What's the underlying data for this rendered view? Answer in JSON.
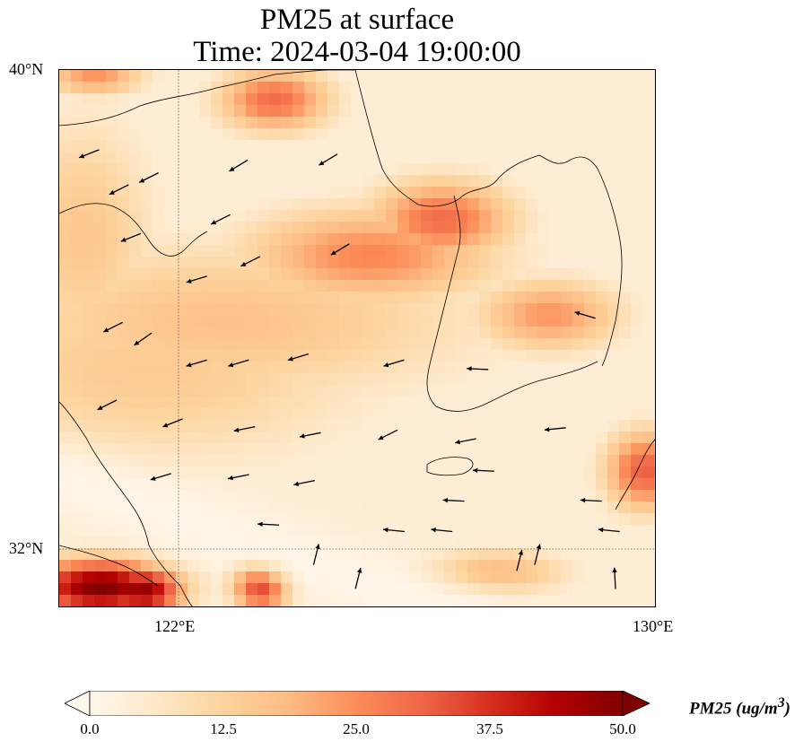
{
  "title": {
    "line1": "PM25 at surface",
    "line2": "Time: 2024-03-04 19:00:00"
  },
  "axes": {
    "lat_ticks": [
      "40°N",
      "32°N"
    ],
    "lon_ticks": [
      "122°E",
      "130°E"
    ],
    "lon_range": [
      120,
      130
    ],
    "lat_range": [
      31,
      40
    ],
    "gridlines": {
      "lon": 122,
      "lat": 32,
      "style": "dotted"
    }
  },
  "colorbar": {
    "label": "PM25",
    "units": "(ug/m",
    "units_exp": "3",
    "units_close": ")",
    "ticks": [
      "0.0",
      "12.5",
      "25.0",
      "37.5",
      "50.0"
    ],
    "range": [
      0,
      50
    ],
    "colormap": "OrRd",
    "extend": "both",
    "colors": [
      "#fff7ec",
      "#fee8c8",
      "#fdd49e",
      "#fdbb84",
      "#fc8d59",
      "#ef6548",
      "#d7301f",
      "#b30000",
      "#7f0000"
    ]
  },
  "chart_data": {
    "type": "heatmap",
    "variable": "PM25",
    "units": "ug/m3",
    "vmin": 0,
    "vmax": 50,
    "blobs": [
      {
        "lon": 120.7,
        "lat": 31.35,
        "value": 50,
        "spread_lon": 0.9,
        "spread_lat": 0.35
      },
      {
        "lon": 121.4,
        "lat": 31.3,
        "value": 48,
        "spread_lon": 0.5,
        "spread_lat": 0.3
      },
      {
        "lon": 123.4,
        "lat": 31.4,
        "value": 45,
        "spread_lon": 0.35,
        "spread_lat": 0.3
      },
      {
        "lon": 123.6,
        "lat": 39.5,
        "value": 30,
        "spread_lon": 0.7,
        "spread_lat": 0.4
      },
      {
        "lon": 120.6,
        "lat": 39.9,
        "value": 24,
        "spread_lon": 0.6,
        "spread_lat": 0.25
      },
      {
        "lon": 126.4,
        "lat": 37.5,
        "value": 30,
        "spread_lon": 0.9,
        "spread_lat": 0.5
      },
      {
        "lon": 125.2,
        "lat": 36.9,
        "value": 26,
        "spread_lon": 1.6,
        "spread_lat": 0.6
      },
      {
        "lon": 128.2,
        "lat": 35.9,
        "value": 24,
        "spread_lon": 0.9,
        "spread_lat": 0.45
      },
      {
        "lon": 129.8,
        "lat": 33.3,
        "value": 32,
        "spread_lon": 0.5,
        "spread_lat": 0.5
      },
      {
        "lon": 127.3,
        "lat": 31.6,
        "value": 19,
        "spread_lon": 0.9,
        "spread_lat": 0.3
      },
      {
        "lon": 122.8,
        "lat": 35.8,
        "value": 17,
        "spread_lon": 3.2,
        "spread_lat": 1.0
      },
      {
        "lon": 121.5,
        "lat": 35.0,
        "value": 15,
        "spread_lon": 2.8,
        "spread_lat": 1.2
      },
      {
        "lon": 120.4,
        "lat": 37.2,
        "value": 16,
        "spread_lon": 0.9,
        "spread_lat": 1.5
      }
    ],
    "clean_band": {
      "description": "low concentration diagonal band",
      "value": 1
    },
    "wind_vectors": [
      {
        "lon": 120.5,
        "lat": 38.6,
        "u": -1,
        "v": -0.4
      },
      {
        "lon": 121.5,
        "lat": 38.2,
        "u": -1,
        "v": -0.5
      },
      {
        "lon": 123.0,
        "lat": 38.4,
        "u": -1,
        "v": -0.6
      },
      {
        "lon": 124.5,
        "lat": 38.5,
        "u": -1,
        "v": -0.6
      },
      {
        "lon": 121.2,
        "lat": 37.2,
        "u": -1,
        "v": -0.4
      },
      {
        "lon": 122.3,
        "lat": 36.5,
        "u": -1,
        "v": -0.3
      },
      {
        "lon": 123.2,
        "lat": 36.8,
        "u": -1,
        "v": -0.5
      },
      {
        "lon": 124.7,
        "lat": 37.0,
        "u": -1,
        "v": -0.6
      },
      {
        "lon": 120.9,
        "lat": 35.7,
        "u": -1,
        "v": -0.5
      },
      {
        "lon": 121.4,
        "lat": 35.5,
        "u": -1,
        "v": -0.7
      },
      {
        "lon": 122.3,
        "lat": 35.1,
        "u": -1,
        "v": -0.3
      },
      {
        "lon": 123.0,
        "lat": 35.1,
        "u": -1,
        "v": -0.3
      },
      {
        "lon": 124.0,
        "lat": 35.2,
        "u": -1,
        "v": -0.3
      },
      {
        "lon": 125.6,
        "lat": 35.1,
        "u": -1,
        "v": -0.3
      },
      {
        "lon": 120.8,
        "lat": 34.4,
        "u": -1,
        "v": -0.5
      },
      {
        "lon": 121.9,
        "lat": 34.1,
        "u": -1,
        "v": -0.4
      },
      {
        "lon": 123.1,
        "lat": 34.0,
        "u": -1,
        "v": -0.2
      },
      {
        "lon": 124.2,
        "lat": 33.9,
        "u": -1,
        "v": -0.2
      },
      {
        "lon": 125.5,
        "lat": 33.9,
        "u": -1,
        "v": -0.5
      },
      {
        "lon": 126.8,
        "lat": 33.8,
        "u": -1,
        "v": -0.2
      },
      {
        "lon": 128.3,
        "lat": 34.0,
        "u": -1,
        "v": -0.1
      },
      {
        "lon": 121.7,
        "lat": 33.2,
        "u": -1,
        "v": -0.3
      },
      {
        "lon": 123.0,
        "lat": 33.2,
        "u": -1,
        "v": -0.2
      },
      {
        "lon": 124.1,
        "lat": 33.1,
        "u": -1,
        "v": -0.2
      },
      {
        "lon": 127.1,
        "lat": 33.3,
        "u": -1,
        "v": 0.05
      },
      {
        "lon": 126.6,
        "lat": 32.8,
        "u": -1,
        "v": 0.05
      },
      {
        "lon": 128.9,
        "lat": 32.8,
        "u": -1,
        "v": 0.05
      },
      {
        "lon": 129.2,
        "lat": 32.3,
        "u": -1,
        "v": 0.1
      },
      {
        "lon": 125.6,
        "lat": 32.3,
        "u": -1,
        "v": 0.1
      },
      {
        "lon": 126.4,
        "lat": 32.3,
        "u": -1,
        "v": 0.1
      },
      {
        "lon": 123.5,
        "lat": 32.4,
        "u": -1,
        "v": 0.05
      },
      {
        "lon": 124.3,
        "lat": 31.9,
        "u": 0.25,
        "v": 1
      },
      {
        "lon": 125.0,
        "lat": 31.5,
        "u": 0.25,
        "v": 1
      },
      {
        "lon": 127.7,
        "lat": 31.8,
        "u": 0.25,
        "v": 1
      },
      {
        "lon": 128.0,
        "lat": 31.9,
        "u": 0.25,
        "v": 1
      },
      {
        "lon": 129.3,
        "lat": 31.5,
        "u": -0.05,
        "v": 1
      },
      {
        "lon": 121.0,
        "lat": 38.0,
        "u": -1,
        "v": -0.5
      },
      {
        "lon": 122.7,
        "lat": 37.5,
        "u": -1,
        "v": -0.5
      },
      {
        "lon": 127.0,
        "lat": 35.0,
        "u": -1,
        "v": 0.05
      },
      {
        "lon": 128.8,
        "lat": 35.9,
        "u": -1,
        "v": 0.3
      }
    ]
  }
}
